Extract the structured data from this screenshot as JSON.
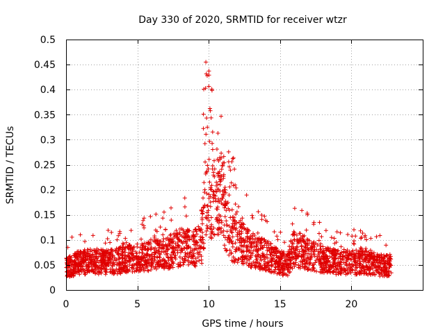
{
  "chart_data": {
    "type": "scatter",
    "title": "Day 330 of 2020, SRMTID for receiver wtzr",
    "xlabel": "GPS time / hours",
    "ylabel": "SRMTID / TECUs",
    "xlim": [
      0,
      25
    ],
    "ylim": [
      0,
      0.5
    ],
    "x_ticks": [
      "0",
      "5",
      "10",
      "15",
      "20"
    ],
    "y_ticks": [
      "0",
      "0.05",
      "0.1",
      "0.15",
      "0.2",
      "0.25",
      "0.3",
      "0.35",
      "0.4",
      "0.45",
      "0.5"
    ],
    "grid": true,
    "legend": "none",
    "marker": "+",
    "color": "#e00000",
    "series": [
      {
        "name": "SRMTID",
        "description": "dense scatter of SRMTID values per satellite, sampled from 0 to ~22.8 h",
        "profile_hours": [
          0,
          1,
          2,
          3,
          4,
          5,
          6,
          7,
          8,
          9,
          9.5,
          9.8,
          10,
          10.5,
          11,
          11.5,
          12,
          13,
          14,
          15,
          15.5,
          16,
          17,
          18,
          19,
          20,
          21,
          22,
          22.8
        ],
        "profile_median": [
          0.045,
          0.055,
          0.058,
          0.055,
          0.06,
          0.065,
          0.068,
          0.072,
          0.085,
          0.085,
          0.09,
          0.2,
          0.14,
          0.2,
          0.17,
          0.1,
          0.1,
          0.08,
          0.07,
          0.055,
          0.05,
          0.085,
          0.07,
          0.06,
          0.055,
          0.055,
          0.055,
          0.05,
          0.05
        ],
        "peak_hour": 9.8,
        "peak_value": 0.455,
        "point_count": 2600
      }
    ]
  }
}
